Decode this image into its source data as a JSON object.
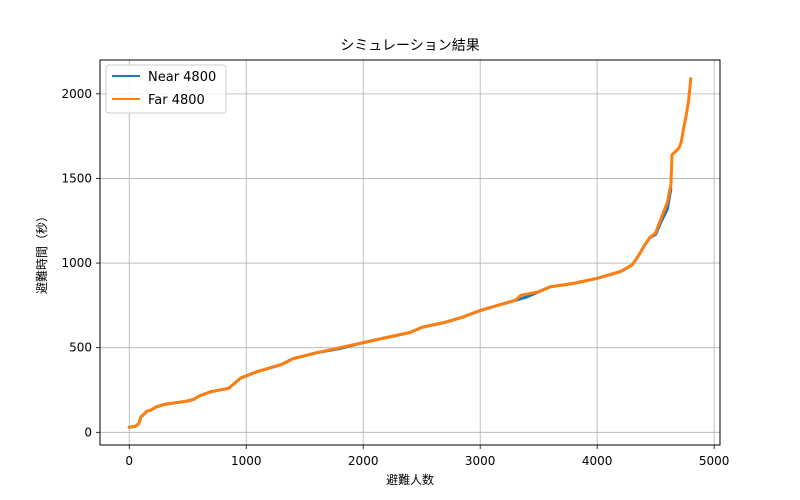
{
  "chart_data": {
    "type": "line",
    "title": "シミュレーション結果",
    "xlabel": "避難人数",
    "ylabel": "避難時間（秒）",
    "xlim": [
      -250,
      5050
    ],
    "ylim": [
      -75,
      2200
    ],
    "xticks": [
      0,
      1000,
      2000,
      3000,
      4000,
      5000
    ],
    "yticks": [
      0,
      500,
      1000,
      1500,
      2000
    ],
    "grid": true,
    "legend_position": "top-left",
    "series": [
      {
        "name": "Near 4800",
        "color": "#1f77b4",
        "x": [
          0,
          50,
          80,
          100,
          130,
          150,
          180,
          230,
          300,
          400,
          450,
          500,
          550,
          600,
          700,
          850,
          950,
          1100,
          1300,
          1400,
          1600,
          1800,
          2000,
          2200,
          2400,
          2500,
          2700,
          2850,
          3000,
          3100,
          3200,
          3300,
          3400,
          3500,
          3600,
          3800,
          4000,
          4100,
          4200,
          4250,
          4300,
          4350,
          4400,
          4450,
          4500,
          4550,
          4600,
          4620,
          4630
        ],
        "y": [
          30,
          35,
          50,
          90,
          110,
          125,
          130,
          150,
          165,
          175,
          180,
          185,
          195,
          215,
          240,
          260,
          320,
          360,
          400,
          435,
          470,
          495,
          530,
          560,
          590,
          620,
          650,
          680,
          720,
          740,
          760,
          780,
          800,
          830,
          860,
          880,
          910,
          930,
          950,
          970,
          990,
          1040,
          1100,
          1150,
          1170,
          1250,
          1320,
          1400,
          1440
        ]
      },
      {
        "name": "Far 4800",
        "color": "#ff7f0e",
        "x": [
          0,
          50,
          80,
          100,
          130,
          150,
          180,
          230,
          300,
          400,
          450,
          500,
          550,
          600,
          700,
          850,
          950,
          1100,
          1300,
          1400,
          1600,
          1800,
          2000,
          2200,
          2400,
          2500,
          2700,
          2850,
          3000,
          3100,
          3200,
          3300,
          3350,
          3500,
          3600,
          3800,
          4000,
          4100,
          4200,
          4250,
          4300,
          4350,
          4400,
          4450,
          4500,
          4550,
          4600,
          4620,
          4630,
          4640,
          4700,
          4720,
          4740,
          4760,
          4780,
          4790,
          4800
        ],
        "y": [
          30,
          35,
          50,
          90,
          110,
          125,
          130,
          150,
          165,
          175,
          180,
          185,
          195,
          215,
          240,
          260,
          320,
          360,
          400,
          435,
          470,
          500,
          530,
          560,
          590,
          620,
          650,
          680,
          720,
          740,
          760,
          780,
          810,
          830,
          860,
          880,
          910,
          930,
          950,
          970,
          990,
          1040,
          1100,
          1150,
          1180,
          1270,
          1360,
          1430,
          1460,
          1640,
          1680,
          1720,
          1800,
          1870,
          1950,
          2020,
          2090
        ]
      }
    ]
  }
}
